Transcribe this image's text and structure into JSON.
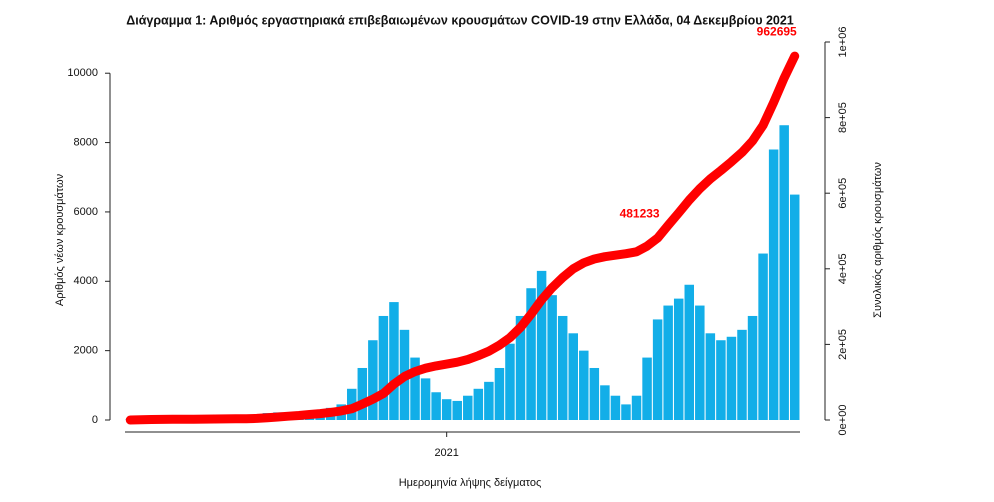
{
  "chart_data": {
    "type": "combo",
    "title": "Διάγραμμα 1: Αριθμός εργαστηριακά επιβεβαιωμένων κρουσμάτων COVID-19 στην Ελλάδα, 04 Δεκεμβρίου 2021",
    "xlabel": "Ημερομηνία λήψης δείγματος",
    "ylabel": "Αριθμός νέων κρουσμάτων",
    "y2label": "Συνολικός αριθμός κρουσμάτων",
    "categories": [
      null,
      null,
      null,
      null,
      null,
      null,
      null,
      null,
      null,
      null,
      null,
      null,
      null,
      null,
      null,
      null,
      null,
      null,
      null,
      null,
      null,
      null,
      null,
      null,
      null,
      null,
      null,
      null,
      null,
      null,
      "2021",
      null,
      null,
      null,
      null,
      null,
      null,
      null,
      null,
      null,
      null,
      null,
      null,
      null,
      null,
      null,
      null,
      null,
      null,
      null,
      null,
      null,
      null,
      null,
      null,
      null,
      null,
      null,
      null,
      null,
      null,
      null,
      null,
      null
    ],
    "ylim": [
      0,
      10900
    ],
    "yticks": [
      0,
      2000,
      4000,
      6000,
      8000,
      10000
    ],
    "y2lim": [
      0,
      1000000
    ],
    "y2ticks": [
      {
        "value": 0,
        "label": "0e+00"
      },
      {
        "value": 200000,
        "label": "2e+05"
      },
      {
        "value": 400000,
        "label": "4e+05"
      },
      {
        "value": 600000,
        "label": "6e+05"
      },
      {
        "value": 800000,
        "label": "8e+05"
      },
      {
        "value": 1000000,
        "label": "1e+06"
      }
    ],
    "series": [
      {
        "type": "bar",
        "color": "#12aee8",
        "values": [
          20,
          60,
          90,
          50,
          25,
          15,
          10,
          15,
          25,
          30,
          40,
          35,
          120,
          200,
          220,
          200,
          190,
          220,
          280,
          350,
          450,
          900,
          1500,
          2300,
          3000,
          3400,
          2600,
          1800,
          1200,
          800,
          600,
          550,
          700,
          900,
          1100,
          1500,
          2200,
          3000,
          3800,
          4300,
          3600,
          3000,
          2500,
          2000,
          1500,
          1000,
          700,
          450,
          700,
          1800,
          2900,
          3300,
          3500,
          3900,
          3300,
          2500,
          2300,
          2400,
          2600,
          3000,
          4800,
          7800,
          8500,
          6500
        ]
      },
      {
        "type": "line",
        "axis": "y2",
        "color": "#ff0000",
        "values": [
          0,
          500,
          1200,
          1600,
          1900,
          2100,
          2200,
          2400,
          2600,
          2900,
          3200,
          3500,
          4200,
          6000,
          8000,
          10000,
          12000,
          14500,
          17000,
          20000,
          24000,
          30000,
          42000,
          55000,
          70000,
          95000,
          115000,
          128000,
          137000,
          143000,
          148000,
          153000,
          160000,
          170000,
          182000,
          198000,
          218000,
          245000,
          280000,
          318000,
          350000,
          377000,
          400000,
          416000,
          426000,
          432000,
          436000,
          440000,
          445000,
          460000,
          481233,
          515000,
          548000,
          582000,
          612000,
          638000,
          660000,
          683000,
          708000,
          738000,
          780000,
          840000,
          905000,
          962695
        ],
        "value_labels": [
          null,
          null,
          null,
          null,
          null,
          null,
          null,
          null,
          null,
          null,
          null,
          null,
          null,
          null,
          null,
          null,
          null,
          null,
          null,
          null,
          null,
          null,
          null,
          null,
          null,
          null,
          null,
          null,
          null,
          null,
          null,
          null,
          null,
          null,
          null,
          null,
          null,
          null,
          null,
          null,
          null,
          null,
          null,
          null,
          null,
          null,
          null,
          null,
          null,
          null,
          "481233",
          null,
          null,
          null,
          null,
          null,
          null,
          null,
          null,
          null,
          null,
          null,
          null,
          "962695"
        ]
      }
    ]
  }
}
